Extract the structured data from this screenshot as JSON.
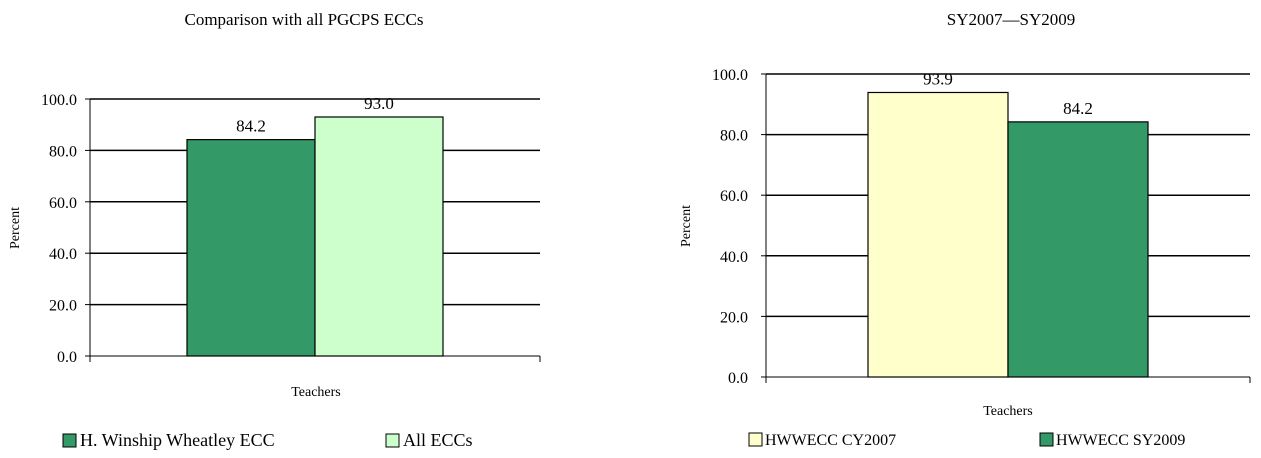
{
  "chart_data": [
    {
      "type": "bar",
      "title": "Comparison with all PGCPS ECCs",
      "xlabel": "Teachers",
      "ylabel": "Percent",
      "categories": [
        "Teachers"
      ],
      "ylim": [
        0,
        100
      ],
      "yticks": [
        "0.0",
        "20.0",
        "40.0",
        "60.0",
        "80.0",
        "100.0"
      ],
      "grid": true,
      "legend_position": "bottom",
      "series": [
        {
          "name": "H. Winship Wheatley ECC",
          "values": [
            84.2
          ],
          "label": "84.2",
          "color": "#339966"
        },
        {
          "name": "All ECCs",
          "values": [
            93.0
          ],
          "label": "93.0",
          "color": "#ccffcc"
        }
      ]
    },
    {
      "type": "bar",
      "title": "SY2007—SY2009",
      "xlabel": "Teachers",
      "ylabel": "Percent",
      "categories": [
        "Teachers"
      ],
      "ylim": [
        0,
        100
      ],
      "yticks": [
        "0.0",
        "20.0",
        "40.0",
        "60.0",
        "80.0",
        "100.0"
      ],
      "grid": true,
      "legend_position": "bottom",
      "series": [
        {
          "name": "HWWECC CY2007",
          "values": [
            93.9
          ],
          "label": "93.9",
          "color": "#ffffcc"
        },
        {
          "name": "HWWECC SY2009",
          "values": [
            84.2
          ],
          "label": "84.2",
          "color": "#339966"
        }
      ]
    }
  ]
}
